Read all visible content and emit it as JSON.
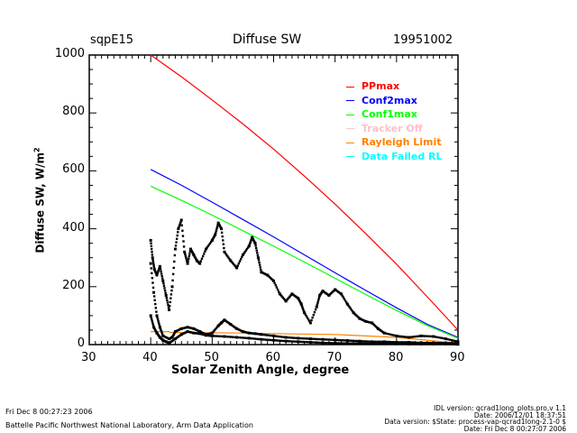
{
  "header": {
    "site": "sqpE15",
    "title": "Diffuse SW",
    "date": "19951002"
  },
  "footer": {
    "left_line1": "Fri Dec  8 00:27:23 2006",
    "left_line2": "Battelle Pacific Northwest National Laboratory, Arm Data Application",
    "right_lines": [
      "IDL version: qcrad1long_plots.pro,v 1.1",
      "Date: 2006/12/01 18:37:51",
      "Data version: $State: process-vap-qcrad1long-2.1-0 $",
      "Date: Fri Dec  8 00:27:07 2006"
    ]
  },
  "chart_data": {
    "type": "line",
    "title": "Diffuse SW",
    "xlabel": "Solar Zenith Angle, degree",
    "ylabel": "Diffuse SW, W/m^2",
    "ylabel_main": "Diffuse SW, W/m",
    "ylabel_sup": "2",
    "xlim": [
      30,
      90
    ],
    "ylim": [
      0,
      1000
    ],
    "xticks": [
      "30",
      "40",
      "50",
      "60",
      "70",
      "80",
      "90"
    ],
    "yticks": [
      "0",
      "200",
      "400",
      "600",
      "800",
      "1000"
    ],
    "legend_position": "top-right",
    "legend": [
      {
        "name": "PPmax",
        "color": "#ff0000"
      },
      {
        "name": "Conf2max",
        "color": "#0000ff"
      },
      {
        "name": "Conf1max",
        "color": "#00ff00"
      },
      {
        "name": "Tracker Off",
        "color": "#ffc0cb"
      },
      {
        "name": "Rayleigh Limit",
        "color": "#ff8000"
      },
      {
        "name": "Data Failed RL",
        "color": "#00ffff"
      }
    ],
    "series": [
      {
        "name": "PPmax",
        "color": "#ff0000",
        "style": "line",
        "x": [
          40,
          45,
          50,
          55,
          60,
          65,
          70,
          75,
          80,
          85,
          90
        ],
        "y": [
          1000,
          925,
          845,
          762,
          675,
          582,
          485,
          383,
          278,
          165,
          50
        ]
      },
      {
        "name": "Conf2max",
        "color": "#0000ff",
        "style": "line",
        "x": [
          40,
          45,
          50,
          55,
          60,
          65,
          70,
          75,
          80,
          85,
          90
        ],
        "y": [
          605,
          550,
          492,
          432,
          372,
          310,
          248,
          187,
          127,
          70,
          25
        ]
      },
      {
        "name": "Conf1max",
        "color": "#00ff00",
        "style": "line",
        "x": [
          40,
          45,
          50,
          55,
          60,
          65,
          70,
          75,
          80,
          85,
          90
        ],
        "y": [
          547,
          498,
          447,
          393,
          340,
          285,
          229,
          173,
          118,
          66,
          22
        ]
      },
      {
        "name": "Rayleigh Limit",
        "color": "#ff8000",
        "style": "line",
        "x": [
          40,
          43,
          43.1,
          55,
          60,
          70,
          75,
          80,
          85,
          90
        ],
        "y": [
          45,
          45,
          42,
          40,
          38,
          35,
          30,
          25,
          15,
          5
        ]
      },
      {
        "name": "Diffuse SW (morning)",
        "color": "#000000",
        "style": "points",
        "x": [
          40,
          40.3,
          40.6,
          41,
          41.5,
          42,
          42.5,
          43,
          43.5,
          44,
          44.5,
          45,
          45.5,
          46,
          46.5,
          47,
          47.5,
          48,
          49,
          50,
          50.5,
          51,
          51.5,
          52,
          53,
          54,
          55,
          56,
          56.5,
          57,
          57.5,
          58,
          59,
          60,
          61,
          62,
          63,
          64,
          64.5,
          65,
          66,
          67,
          67.5,
          68,
          69,
          70,
          71,
          72,
          73,
          74,
          75,
          76,
          77,
          78,
          80,
          82,
          84,
          86,
          88,
          90
        ],
        "y": [
          360,
          300,
          260,
          240,
          270,
          220,
          170,
          120,
          200,
          330,
          400,
          430,
          320,
          280,
          330,
          310,
          290,
          280,
          330,
          360,
          380,
          420,
          400,
          320,
          290,
          265,
          310,
          340,
          370,
          350,
          300,
          250,
          240,
          220,
          175,
          150,
          175,
          160,
          140,
          110,
          75,
          130,
          170,
          185,
          170,
          190,
          175,
          140,
          110,
          90,
          80,
          75,
          55,
          40,
          30,
          25,
          30,
          28,
          20,
          10
        ]
      },
      {
        "name": "Diffuse SW (afternoon)",
        "color": "#000000",
        "style": "points",
        "x": [
          40,
          40.5,
          41,
          41.5,
          42,
          43,
          43.5,
          44,
          45,
          46,
          47,
          48,
          49,
          50,
          51,
          51.5,
          52,
          53,
          54,
          55,
          56,
          57,
          58,
          60,
          62,
          64,
          66,
          68,
          70,
          72,
          74,
          76,
          78,
          80,
          82,
          84,
          86,
          88,
          90
        ],
        "y": [
          280,
          180,
          100,
          60,
          30,
          20,
          25,
          45,
          55,
          60,
          55,
          45,
          35,
          40,
          65,
          75,
          85,
          70,
          55,
          45,
          40,
          38,
          35,
          30,
          25,
          22,
          20,
          18,
          16,
          14,
          12,
          10,
          10,
          8,
          8,
          6,
          6,
          5,
          5
        ]
      },
      {
        "name": "Diffuse SW (lower envelope)",
        "color": "#000000",
        "style": "points",
        "x": [
          40,
          40.5,
          41,
          41.5,
          42,
          42.5,
          43,
          44,
          45,
          46,
          47,
          48,
          49,
          50,
          52,
          54,
          56,
          58,
          60,
          62,
          64,
          66,
          68,
          70,
          72,
          74,
          76,
          78,
          80,
          82,
          84,
          86,
          88,
          90
        ],
        "y": [
          100,
          60,
          40,
          25,
          15,
          10,
          5,
          20,
          35,
          45,
          40,
          38,
          32,
          30,
          28,
          25,
          22,
          18,
          15,
          12,
          10,
          8,
          6,
          5,
          4,
          4,
          3,
          3,
          3,
          2,
          2,
          2,
          2,
          1
        ]
      }
    ]
  }
}
